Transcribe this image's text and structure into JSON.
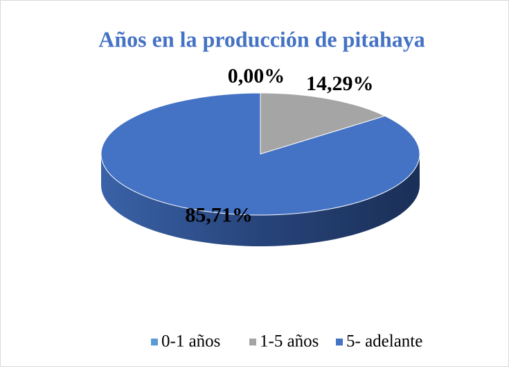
{
  "chart_data": {
    "type": "pie",
    "title": "Años en la producción de pitahaya",
    "categories": [
      "0-1 años",
      "1-5 años",
      "5- adelante"
    ],
    "values": [
      0,
      14.29,
      85.71
    ],
    "value_labels": [
      "0,00%",
      "14,29%",
      "85,71%"
    ],
    "colors": [
      "#5b9bd5",
      "#a5a5a5",
      "#4472c4"
    ],
    "legend": "bottom"
  }
}
